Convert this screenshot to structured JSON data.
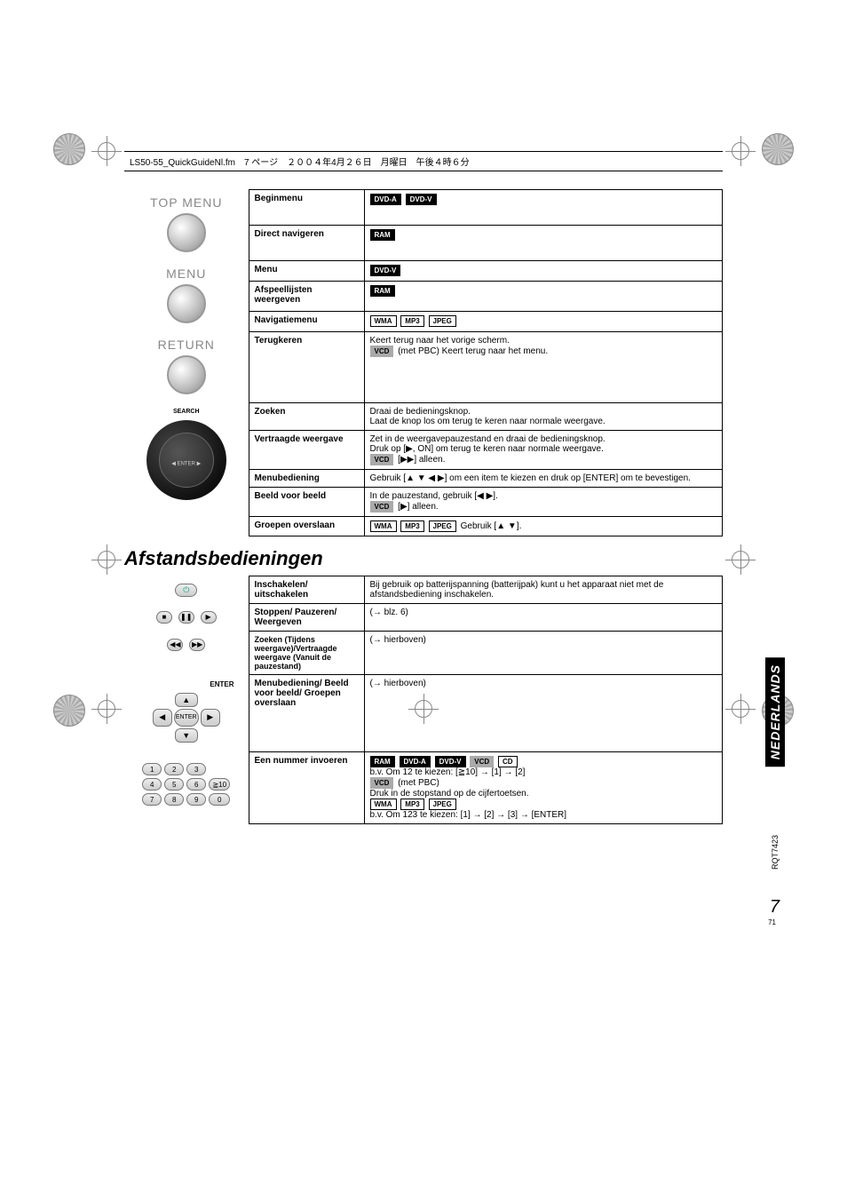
{
  "header": "LS50-55_QuickGuideNl.fm　7 ページ　２００４年4月２６日　月曜日　午後４時６分",
  "sideTab": "NEDERLANDS",
  "sideCode": "RQT7423",
  "pageNum": "7",
  "pageSmall": "71",
  "sectionTitle": "Afstandsbedieningen",
  "labels": {
    "topMenu": "TOP MENU",
    "menu": "MENU",
    "return": "RETURN",
    "search": "SEARCH",
    "enter": "ENTER"
  },
  "badges": {
    "dvda": "DVD-A",
    "dvdv": "DVD-V",
    "ram": "RAM",
    "wma": "WMA",
    "mp3": "MP3",
    "jpeg": "JPEG",
    "vcd": "VCD",
    "cd": "CD"
  },
  "table1": {
    "r1": {
      "fn": "Beginmenu"
    },
    "r2": {
      "fn": "Direct navigeren"
    },
    "r3": {
      "fn": "Menu"
    },
    "r4": {
      "fn": "Afspeellijsten weergeven"
    },
    "r5": {
      "fn": "Navigatiemenu"
    },
    "r6": {
      "fn": "Terugkeren",
      "desc1": "Keert terug naar het vorige scherm.",
      "desc2": " (met PBC) Keert terug naar het menu."
    },
    "r7": {
      "fn": "Zoeken",
      "desc": "Draai de bedieningsknop.\nLaat de knop los om terug te keren naar normale weergave."
    },
    "r8": {
      "fn": "Vertraagde weergave",
      "desc1": "Zet in de weergavepauzestand en draai de bedieningsknop.",
      "desc2": "Druk op [▶, ON] om terug te keren naar normale weergave.",
      "desc3": " [▶▶] alleen."
    },
    "r9": {
      "fn": "Menubediening",
      "desc": "Gebruik [▲ ▼ ◀ ▶] om een item te kiezen en druk op [ENTER] om te bevestigen."
    },
    "r10": {
      "fn": "Beeld voor beeld",
      "desc1": "In de pauzestand, gebruik [◀ ▶].",
      "desc2": " [▶] alleen."
    },
    "r11": {
      "fn": "Groepen overslaan",
      "desc": " Gebruik [▲ ▼]."
    }
  },
  "table2": {
    "r1": {
      "fn": "Inschakelen/ uitschakelen",
      "desc": "Bij gebruik op batterijspanning (batterijpak) kunt u het apparaat niet met de afstandsbediening inschakelen."
    },
    "r2": {
      "fn": "Stoppen/ Pauzeren/ Weergeven",
      "desc": "(→ blz. 6)"
    },
    "r3": {
      "fn": "Zoeken (Tijdens weergave)/Vertraagde weergave (Vanuit de pauzestand)",
      "desc": "(→ hierboven)"
    },
    "r4": {
      "fn": "Menubediening/ Beeld voor beeld/ Groepen overslaan",
      "desc": "(→  hierboven)"
    },
    "r5": {
      "fn": "Een nummer invoeren",
      "desc1": "b.v. Om 12 te kiezen: [≧10] → [1] → [2]",
      "desc2": " (met PBC)",
      "desc3": "Druk in de stopstand op de cijfertoetsen.",
      "desc4": "b.v. Om 123 te kiezen: [1] → [2] → [3] → [ENTER]"
    }
  },
  "numpad": [
    "1",
    "2",
    "3",
    "4",
    "5",
    "6",
    "7",
    "8",
    "9",
    "0",
    "≧10"
  ]
}
